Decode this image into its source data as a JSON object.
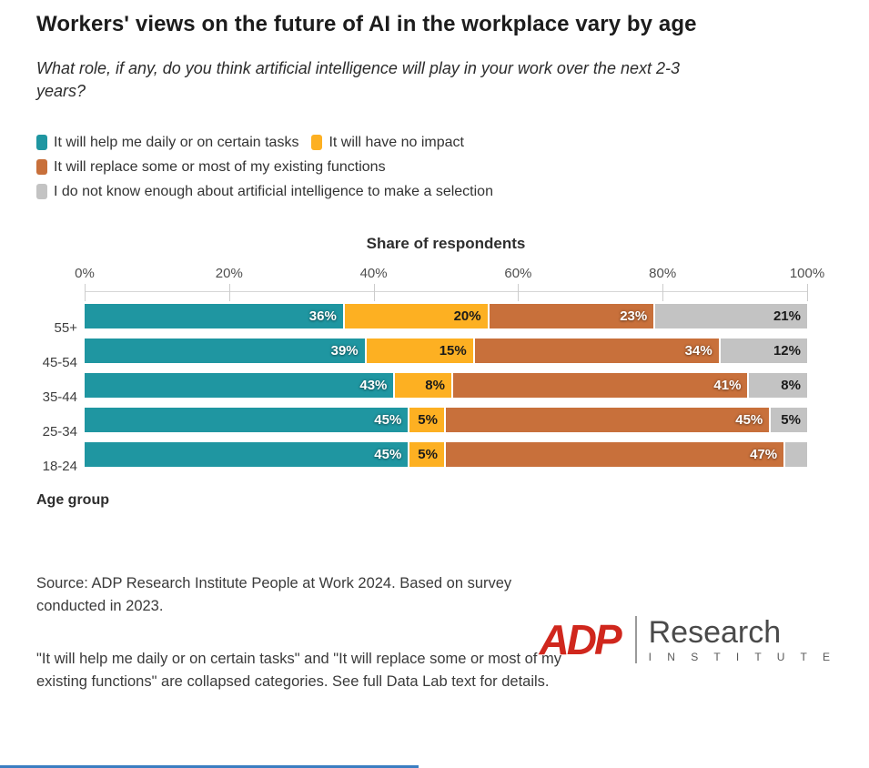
{
  "header": {
    "title": "Workers' views on the future of AI in the workplace vary by age",
    "subtitle": "What role, if any, do you think artificial intelligence will play in your work over the next 2-3 years?"
  },
  "chart_data": {
    "type": "bar",
    "stacked": true,
    "orientation": "horizontal",
    "axis_title": "Share of respondents",
    "y_axis_label": "Age group",
    "xlim": [
      0,
      100
    ],
    "x_ticks": [
      0,
      20,
      40,
      60,
      80,
      100
    ],
    "x_tick_suffix": "%",
    "data_label_suffix": "%",
    "grid": false,
    "legend_position": "top",
    "categories": [
      "55+",
      "45-54",
      "35-44",
      "25-34",
      "18-24"
    ],
    "series": [
      {
        "name": "It will help me daily or on certain tasks",
        "color": "#1F96A1",
        "label_color": "#ffffff",
        "values": [
          36,
          39,
          43,
          45,
          45
        ]
      },
      {
        "name": "It will have no impact",
        "color": "#FDB022",
        "label_color": "#1a1a1a",
        "values": [
          20,
          15,
          8,
          5,
          5
        ]
      },
      {
        "name": "It will replace some or most of my existing functions",
        "color": "#C8703B",
        "label_color": "#ffffff",
        "values": [
          23,
          34,
          41,
          45,
          47
        ]
      },
      {
        "name": "I do not know enough about artificial intelligence to make a selection",
        "color": "#C3C3C3",
        "label_color": "#1a1a1a",
        "values": [
          21,
          12,
          8,
          5,
          3
        ]
      }
    ]
  },
  "footer": {
    "source": "Source: ADP Research Institute People at Work 2024. Based on survey conducted in 2023.",
    "footnote": "\"It will help me daily or on certain tasks\" and \"It will replace some or most of my existing functions\" are collapsed categories. See full Data Lab text for details.",
    "logo": {
      "brand": "ADP",
      "name": "Research",
      "subname": "I N S T I T U T E",
      "brand_color": "#D0271D"
    }
  },
  "accent_line_color": "#3B7EC2"
}
